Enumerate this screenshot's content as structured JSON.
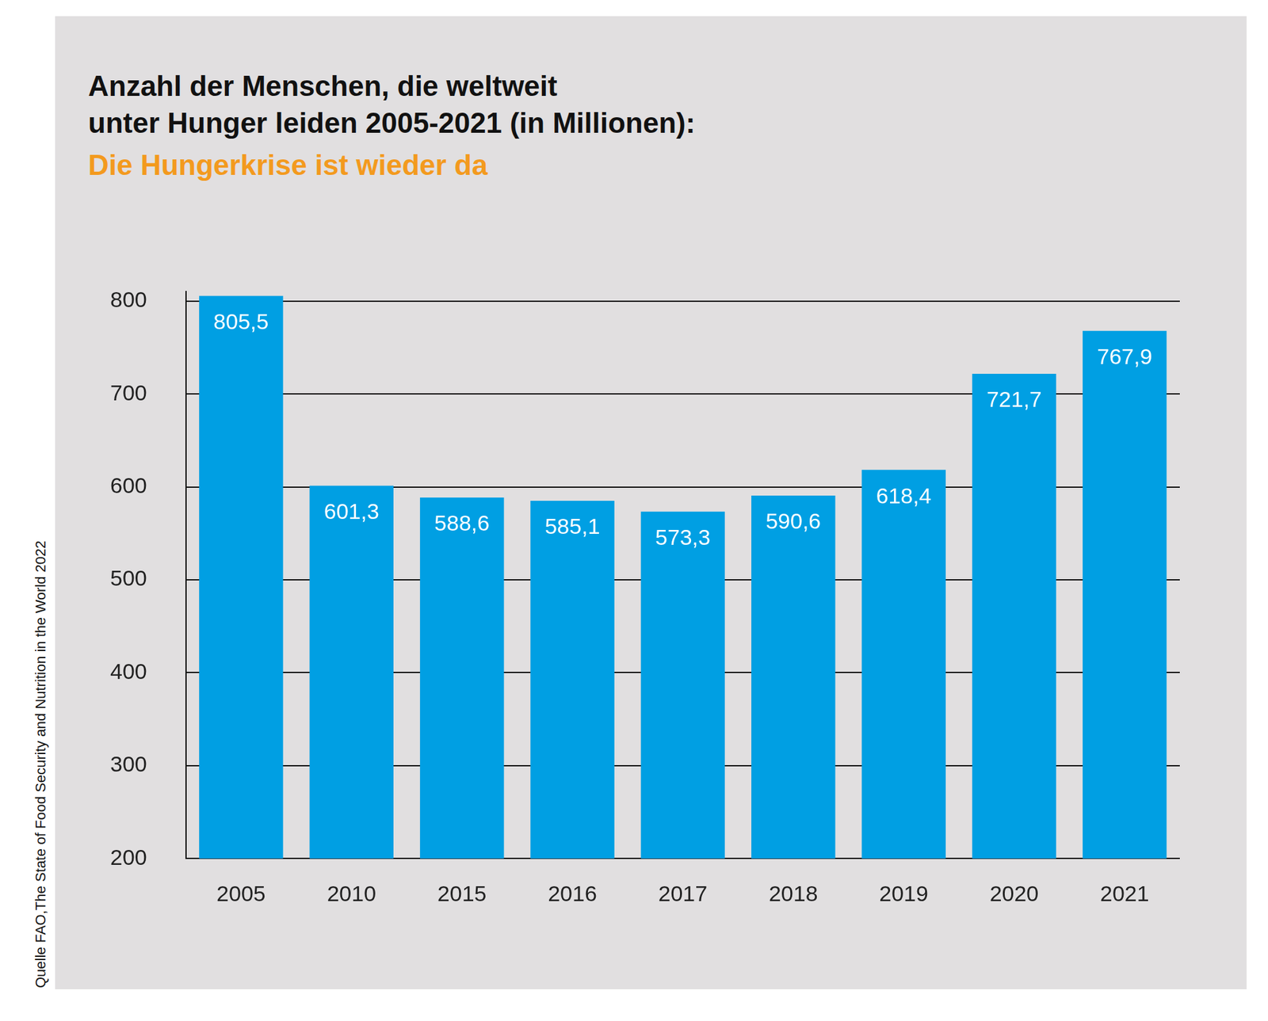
{
  "chart_data": {
    "type": "bar",
    "title": [
      "Anzahl der Menschen, die weltweit",
      "unter Hunger leiden 2005-2021 (in Millionen):"
    ],
    "subtitle": "Die Hungerkrise ist wieder da",
    "source": "Quelle FAO,The State of Food Security and Nutrition in the World 2022",
    "categories": [
      "2005",
      "2010",
      "2015",
      "2016",
      "2017",
      "2018",
      "2019",
      "2020",
      "2021"
    ],
    "values": [
      805.5,
      601.3,
      588.6,
      585.1,
      573.3,
      590.6,
      618.4,
      721.7,
      767.9
    ],
    "value_labels": [
      "805,5",
      "601,3",
      "588,6",
      "585,1",
      "573,3",
      "590,6",
      "618,4",
      "721,7",
      "767,9"
    ],
    "data_labels": true,
    "color": "#009fe3",
    "ylim": [
      200,
      810
    ],
    "yticks": [
      200,
      300,
      400,
      500,
      600,
      700,
      800
    ],
    "grid": true
  }
}
